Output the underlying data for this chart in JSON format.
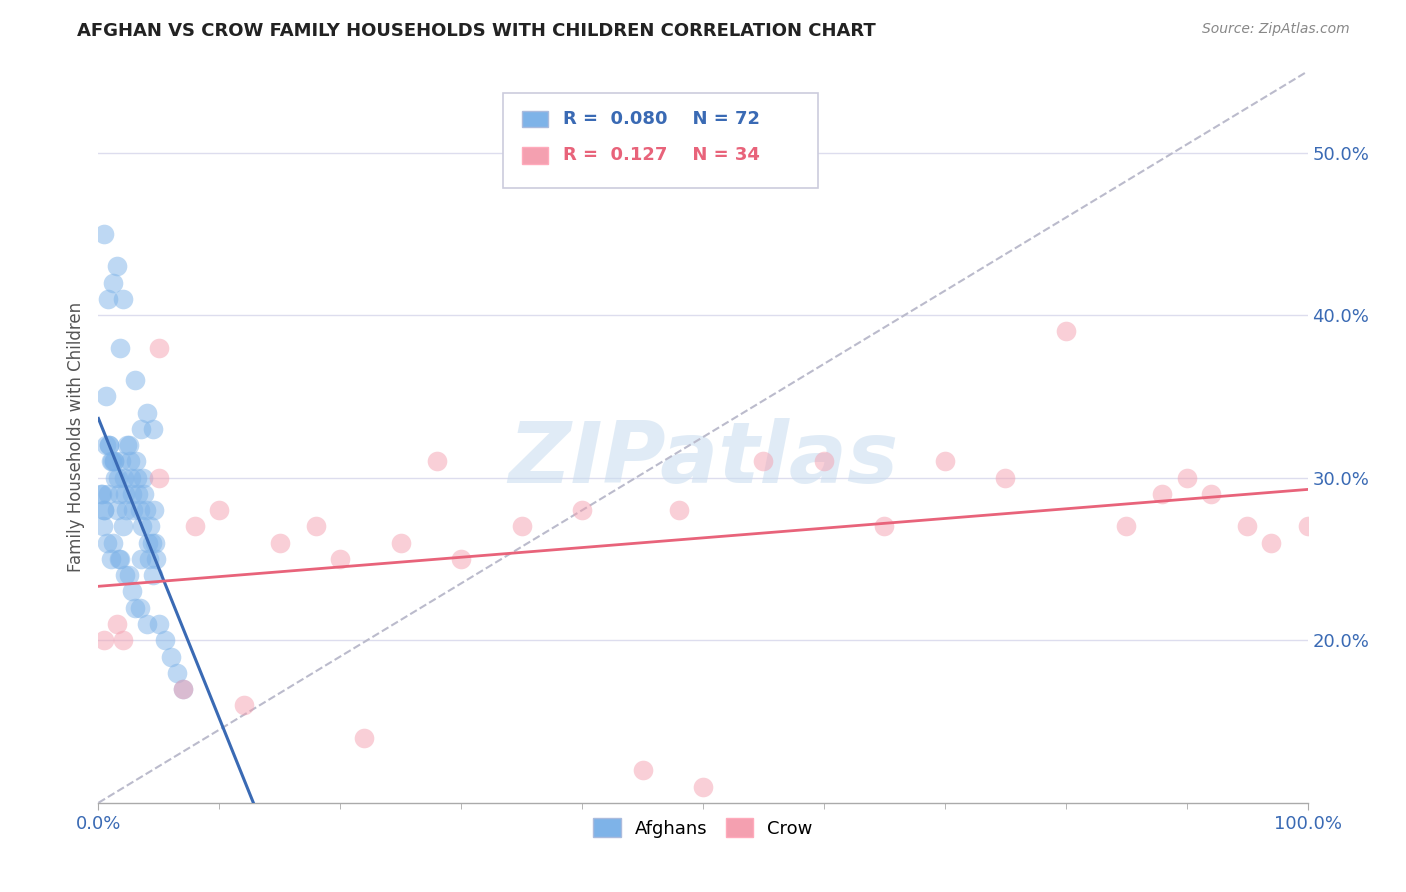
{
  "title": "AFGHAN VS CROW FAMILY HOUSEHOLDS WITH CHILDREN CORRELATION CHART",
  "source": "Source: ZipAtlas.com",
  "ylabel": "Family Households with Children",
  "legend_afghan": "Afghans",
  "legend_crow": "Crow",
  "afghan_R": "0.080",
  "afghan_N": "72",
  "crow_R": "0.127",
  "crow_N": "34",
  "afghan_color": "#7EB3E8",
  "crow_color": "#F4A0B0",
  "afghan_line_color": "#3A6AB4",
  "crow_line_color": "#E8637A",
  "diag_line_color": "#BBBBCC",
  "watermark": "ZIPatlas",
  "background_color": "#FFFFFF",
  "grid_color": "#DDDDEE",
  "xlim": [
    0,
    100
  ],
  "ylim": [
    10,
    55
  ],
  "yticks": [
    20,
    30,
    40,
    50
  ],
  "ytick_labels": [
    "20.0%",
    "30.0%",
    "40.0%",
    "50.0%"
  ],
  "xtick_vals": [
    0,
    100
  ],
  "xtick_labels": [
    "0.0%",
    "100.0%"
  ],
  "afghan_x": [
    0.4,
    0.5,
    0.6,
    0.7,
    0.8,
    0.9,
    1.0,
    1.1,
    1.2,
    1.3,
    1.4,
    1.5,
    1.6,
    1.7,
    1.8,
    1.9,
    2.0,
    2.1,
    2.2,
    2.3,
    2.4,
    2.5,
    2.6,
    2.7,
    2.8,
    2.9,
    3.0,
    3.1,
    3.2,
    3.3,
    3.4,
    3.5,
    3.6,
    3.7,
    3.8,
    3.9,
    4.0,
    4.1,
    4.2,
    4.3,
    4.4,
    4.5,
    4.6,
    4.7,
    4.8,
    0.3,
    0.5,
    0.6,
    0.8,
    1.0,
    1.2,
    1.5,
    1.8,
    2.0,
    2.5,
    3.0,
    3.5,
    4.0,
    4.5,
    5.0,
    5.5,
    6.0,
    6.5,
    7.0,
    0.2,
    0.5,
    0.9,
    1.3,
    1.7,
    2.2,
    2.8,
    3.4
  ],
  "afghan_y": [
    27,
    45,
    32,
    26,
    41,
    32,
    31,
    31,
    42,
    31,
    30,
    43,
    30,
    29,
    38,
    31,
    41,
    30,
    29,
    28,
    32,
    32,
    31,
    30,
    29,
    28,
    36,
    31,
    30,
    29,
    28,
    33,
    27,
    30,
    29,
    28,
    34,
    26,
    25,
    27,
    26,
    33,
    28,
    26,
    25,
    29,
    28,
    35,
    29,
    25,
    26,
    28,
    25,
    27,
    24,
    22,
    25,
    21,
    24,
    21,
    20,
    19,
    18,
    17,
    29,
    28,
    32,
    31,
    25,
    24,
    23,
    22
  ],
  "crow_x": [
    0.5,
    1.5,
    2.0,
    5.0,
    5.0,
    7.0,
    8.0,
    10.0,
    12.0,
    15.0,
    18.0,
    20.0,
    22.0,
    25.0,
    28.0,
    30.0,
    35.0,
    40.0,
    45.0,
    48.0,
    50.0,
    55.0,
    60.0,
    65.0,
    70.0,
    75.0,
    80.0,
    85.0,
    88.0,
    90.0,
    92.0,
    95.0,
    97.0,
    100.0
  ],
  "crow_y": [
    20,
    21,
    20,
    38,
    30,
    17,
    27,
    28,
    16,
    26,
    27,
    25,
    14,
    26,
    31,
    25,
    27,
    28,
    12,
    28,
    11,
    31,
    31,
    27,
    31,
    30,
    39,
    27,
    29,
    30,
    29,
    27,
    26,
    27
  ]
}
